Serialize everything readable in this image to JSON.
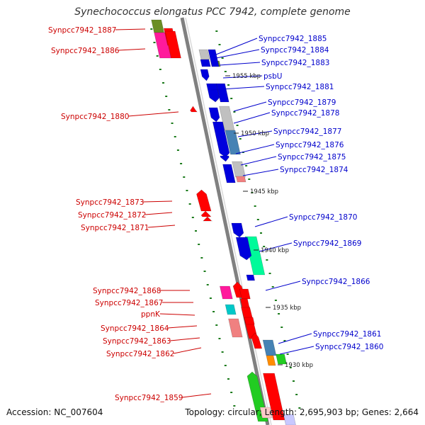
{
  "title": "Synechococcus elongatus PCC 7942, complete genome",
  "accession_line": "Accession: NC_007604",
  "summary_line": "Topology: circular; Length: 2,695,903 bp; Genes: 2,664",
  "colors": {
    "backbone": "#808080",
    "reverse_label": "#cc0000",
    "forward_label": "#0000cc",
    "tick": "#1a7a1a",
    "gene_red": "#ff0000",
    "gene_blue": "#0000dd",
    "gene_magenta": "#ff1a9c",
    "gene_olive": "#6b8e23",
    "gene_gray": "#c0c0c0",
    "gene_steel": "#4682b4",
    "gene_aqua": "#00fa9a",
    "gene_cyan": "#00c8c8",
    "gene_pink": "#f08080",
    "gene_green": "#22cc22",
    "gene_orange": "#ff8c00"
  },
  "genes": [
    {
      "label": "Synpcc7942_1887",
      "strand": "reverse",
      "fill": "#6b8e23"
    },
    {
      "label": "Synpcc7942_1886",
      "strand": "reverse",
      "fill": "#ff1a9c"
    },
    {
      "label": "Synpcc7942_1885",
      "strand": "forward",
      "fill": "#c0c0c0"
    },
    {
      "label": "Synpcc7942_1884",
      "strand": "forward",
      "fill": "#0000dd"
    },
    {
      "label": "Synpcc7942_1883",
      "strand": "forward",
      "fill": "#6b8e23"
    },
    {
      "label": "psbU",
      "strand": "forward",
      "fill": "#0000dd"
    },
    {
      "label": "Synpcc7942_1881",
      "strand": "forward",
      "fill": "#0000dd"
    },
    {
      "label": "Synpcc7942_1880",
      "strand": "reverse",
      "fill": "#ff0000"
    },
    {
      "label": "Synpcc7942_1879",
      "strand": "forward",
      "fill": "#0000dd"
    },
    {
      "label": "Synpcc7942_1878",
      "strand": "forward",
      "fill": "#c0c0c0"
    },
    {
      "label": "Synpcc7942_1877",
      "strand": "forward",
      "fill": "#0000dd"
    },
    {
      "label": "Synpcc7942_1876",
      "strand": "forward",
      "fill": "#4682b4"
    },
    {
      "label": "Synpcc7942_1875",
      "strand": "forward",
      "fill": "#0000dd"
    },
    {
      "label": "Synpcc7942_1874",
      "strand": "forward",
      "fill": "#c0c0c0"
    },
    {
      "label": "Synpcc7942_1873",
      "strand": "reverse",
      "fill": "#ff0000"
    },
    {
      "label": "Synpcc7942_1872",
      "strand": "reverse",
      "fill": "#ff0000"
    },
    {
      "label": "Synpcc7942_1871",
      "strand": "reverse",
      "fill": "#ff0000"
    },
    {
      "label": "Synpcc7942_1870",
      "strand": "forward",
      "fill": "#0000dd"
    },
    {
      "label": "Synpcc7942_1869",
      "strand": "forward",
      "fill": "#00fa9a"
    },
    {
      "label": "Synpcc7942_1866",
      "strand": "forward",
      "fill": "#0000dd"
    },
    {
      "label": "Synpcc7942_1868",
      "strand": "reverse",
      "fill": "#ff1a9c"
    },
    {
      "label": "Synpcc7942_1867",
      "strand": "reverse",
      "fill": "#ff0000"
    },
    {
      "label": "ppnK",
      "strand": "reverse",
      "fill": "#00c8c8"
    },
    {
      "label": "Synpcc7942_1864",
      "strand": "reverse",
      "fill": "#f08080"
    },
    {
      "label": "Synpcc7942_1863",
      "strand": "reverse",
      "fill": "#ff0000"
    },
    {
      "label": "Synpcc7942_1862",
      "strand": "reverse",
      "fill": "#ff0000"
    },
    {
      "label": "Synpcc7942_1861",
      "strand": "forward",
      "fill": "#4682b4"
    },
    {
      "label": "Synpcc7942_1860",
      "strand": "forward",
      "fill": "#ff8c00"
    },
    {
      "label": "Synpcc7942_1859",
      "strand": "reverse",
      "fill": "#22cc22"
    }
  ],
  "kbp_markers": [
    "1955 kbp",
    "1950 kbp",
    "1945 kbp",
    "1940 kbp",
    "1935 kbp",
    "1930 kbp"
  ]
}
